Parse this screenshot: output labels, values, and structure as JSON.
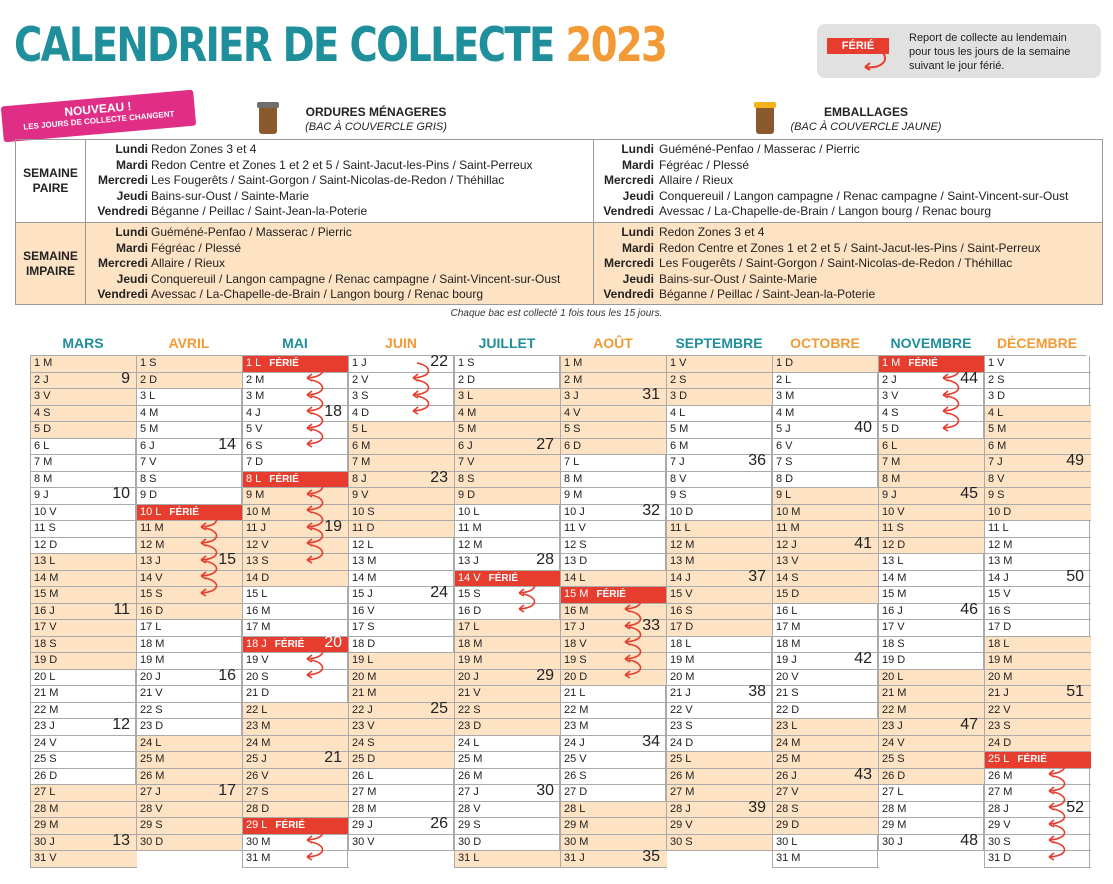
{
  "title": {
    "main": "CALENDRIER DE COLLECTE",
    "year": "2023"
  },
  "legend": {
    "badge": "FÉRIÉ",
    "text": [
      "Report de collecte au lendemain",
      "pour tous les jours de la semaine",
      "suivant le jour férié."
    ]
  },
  "banner": {
    "line1": "NOUVEAU !",
    "line2": "LES JOURS DE COLLECTE CHANGENT"
  },
  "bins": {
    "om": {
      "title": "ORDURES MÉNAGERES",
      "subtitle": "(BAC À COUVERCLE GRIS)",
      "lid_color": "#6e6e6e"
    },
    "emb": {
      "title": "EMBALLAGES",
      "subtitle": "(BAC À COUVERCLE JAUNE)",
      "lid_color": "#f2b21c"
    }
  },
  "schedule": {
    "paire": {
      "label": [
        "SEMAINE",
        "PAIRE"
      ],
      "days": [
        "Lundi",
        "Mardi",
        "Mercredi",
        "Jeudi",
        "Vendredi"
      ],
      "om": [
        "Redon Zones 3 et 4",
        "Redon Centre et Zones 1 et 2 et 5 / Saint-Jacut-les-Pins / Saint-Perreux",
        "Les Fougerêts / Saint-Gorgon / Saint-Nicolas-de-Redon / Théhillac",
        "Bains-sur-Oust / Sainte-Marie",
        "Béganne / Peillac / Saint-Jean-la-Poterie"
      ],
      "emb": [
        "Guéméné-Penfao / Masserac / Pierric",
        "Fégréac / Plessé",
        "Allaire / Rieux",
        "Conquereuil / Langon campagne / Renac campagne / Saint-Vincent-sur-Oust",
        "Avessac / La-Chapelle-de-Brain / Langon bourg / Renac bourg"
      ]
    },
    "impaire": {
      "label": [
        "SEMAINE",
        "IMPAIRE"
      ],
      "days": [
        "Lundi",
        "Mardi",
        "Mercredi",
        "Jeudi",
        "Vendredi"
      ],
      "om": [
        "Guéméné-Penfao / Masserac / Pierric",
        "Fégréac / Plessé",
        "Allaire / Rieux",
        "Conquereuil / Langon campagne / Renac campagne / Saint-Vincent-sur-Oust",
        "Avessac / La-Chapelle-de-Brain / Langon bourg / Renac bourg"
      ],
      "emb": [
        "Redon Zones 3 et 4",
        "Redon Centre et Zones 1 et 2 et 5 / Saint-Jacut-les-Pins / Saint-Perreux",
        "Les Fougerêts / Saint-Gorgon / Saint-Nicolas-de-Redon / Théhillac",
        "Bains-sur-Oust / Sainte-Marie",
        "Béganne / Peillac / Saint-Jean-la-Poterie"
      ]
    }
  },
  "note": "Chaque bac est collecté 1 fois tous les 15 jours.",
  "colors": {
    "teal": "#1f8f9b",
    "orange": "#f29a35",
    "shade": "#fde2c3",
    "holiday": "#e63d2f",
    "arrow": "#e63d2f"
  },
  "ferie_label": "FÉRIÉ",
  "months": [
    {
      "name": "MARS",
      "color": "#1f8f9b",
      "days": [
        "1 M",
        "2 J",
        "3 V",
        "4 S",
        "5 D",
        "6 L",
        "7 M",
        "8 M",
        "9 J",
        "10 V",
        "11 S",
        "12 D",
        "13 L",
        "14 M",
        "15 M",
        "16 J",
        "17 V",
        "18 S",
        "19 D",
        "20 L",
        "21 M",
        "22 M",
        "23 J",
        "24 V",
        "25 S",
        "26 D",
        "27 L",
        "28 M",
        "29 M",
        "30 J",
        "31 V"
      ],
      "shaded": [
        1,
        2,
        3,
        4,
        5,
        13,
        14,
        15,
        16,
        17,
        18,
        19,
        27,
        28,
        29,
        30,
        31
      ],
      "weeks": {
        "2": "9",
        "9": "10",
        "16": "11",
        "23": "12",
        "30": "13"
      },
      "holidays": [],
      "arrows": []
    },
    {
      "name": "AVRIL",
      "color": "#f29a35",
      "days": [
        "1 S",
        "2 D",
        "3 L",
        "4 M",
        "5 M",
        "6 J",
        "7 V",
        "8 S",
        "9 D",
        "10 L",
        "11 M",
        "12 M",
        "13 J",
        "14 V",
        "15 S",
        "16 D",
        "17 L",
        "18 M",
        "19 M",
        "20 J",
        "21 V",
        "22 S",
        "23 D",
        "24 L",
        "25 M",
        "26 M",
        "27 J",
        "28 V",
        "29 S",
        "30 D"
      ],
      "shaded": [
        1,
        2,
        10,
        11,
        12,
        13,
        14,
        15,
        16,
        24,
        25,
        26,
        27,
        28,
        29,
        30
      ],
      "weeks": {
        "6": "14",
        "13": "15",
        "20": "16",
        "27": "17"
      },
      "holidays": [
        10
      ],
      "arrows": [
        10,
        11,
        12,
        13,
        14
      ]
    },
    {
      "name": "MAI",
      "color": "#1f8f9b",
      "days": [
        "1 L",
        "2 M",
        "3 M",
        "4 J",
        "5 V",
        "6 S",
        "7 D",
        "8 L",
        "9 M",
        "10 M",
        "11 J",
        "12 V",
        "13 S",
        "14 D",
        "15 L",
        "16 M",
        "17 M",
        "18 J",
        "19 V",
        "20 S",
        "21 D",
        "22 L",
        "23 M",
        "24 M",
        "25 J",
        "26 V",
        "27 S",
        "28 D",
        "29 L",
        "30 M",
        "31 M"
      ],
      "shaded": [
        8,
        9,
        10,
        11,
        12,
        13,
        14,
        22,
        23,
        24,
        25,
        26,
        27,
        28
      ],
      "weeks": {
        "4": "18",
        "11": "19",
        "18": "20",
        "25": "21"
      },
      "holidays": [
        1,
        8,
        18,
        29
      ],
      "arrows": [
        1,
        2,
        3,
        4,
        5,
        8,
        9,
        10,
        11,
        12,
        18,
        19,
        29,
        30
      ]
    },
    {
      "name": "JUIN",
      "color": "#f29a35",
      "days": [
        "1 J",
        "2 V",
        "3 S",
        "4 D",
        "5 L",
        "6 M",
        "7 M",
        "8 J",
        "9 V",
        "10 S",
        "11 D",
        "12 L",
        "13 M",
        "14 M",
        "15 J",
        "16 V",
        "17 S",
        "18 D",
        "19 L",
        "20 M",
        "21 M",
        "22 J",
        "23 V",
        "24 S",
        "25 D",
        "26 L",
        "27 M",
        "28 M",
        "29 J",
        "30 V"
      ],
      "shaded": [
        5,
        6,
        7,
        8,
        9,
        10,
        11,
        19,
        20,
        21,
        22,
        23,
        24,
        25
      ],
      "weeks": {
        "1": "22",
        "8": "23",
        "15": "24",
        "22": "25",
        "29": "26"
      },
      "holidays": [],
      "arrows": [
        1,
        2,
        3
      ]
    },
    {
      "name": "JUILLET",
      "color": "#1f8f9b",
      "days": [
        "1 S",
        "2 D",
        "3 L",
        "4 M",
        "5 M",
        "6 J",
        "7 V",
        "8 S",
        "9 D",
        "10 L",
        "11 M",
        "12 M",
        "13 J",
        "14 V",
        "15 S",
        "16 D",
        "17 L",
        "18 M",
        "19 M",
        "20 J",
        "21 V",
        "22 S",
        "23 D",
        "24 L",
        "25 M",
        "26 M",
        "27 J",
        "28 V",
        "29 S",
        "30 D",
        "31 L"
      ],
      "shaded": [
        3,
        4,
        5,
        6,
        7,
        8,
        9,
        17,
        18,
        19,
        20,
        21,
        22,
        23,
        31
      ],
      "weeks": {
        "6": "27",
        "13": "28",
        "20": "29",
        "27": "30"
      },
      "holidays": [
        14
      ],
      "arrows": [
        14,
        15
      ]
    },
    {
      "name": "AOÛT",
      "color": "#f29a35",
      "days": [
        "1 M",
        "2 M",
        "3 J",
        "4 V",
        "5 S",
        "6 D",
        "7 L",
        "8 M",
        "9 M",
        "10 J",
        "11 V",
        "12 S",
        "13 D",
        "14 L",
        "15 M",
        "16 M",
        "17 J",
        "18 V",
        "19 S",
        "20 D",
        "21 L",
        "22 M",
        "23 M",
        "24 J",
        "25 V",
        "26 S",
        "27 D",
        "28 L",
        "29 M",
        "30 M",
        "31 J"
      ],
      "shaded": [
        1,
        2,
        3,
        4,
        5,
        6,
        14,
        15,
        16,
        17,
        18,
        19,
        20,
        28,
        29,
        30,
        31
      ],
      "weeks": {
        "3": "31",
        "10": "32",
        "17": "33",
        "24": "34",
        "31": "35"
      },
      "holidays": [
        15
      ],
      "arrows": [
        15,
        16,
        17,
        18,
        19
      ]
    },
    {
      "name": "SEPTEMBRE",
      "color": "#1f8f9b",
      "days": [
        "1 V",
        "2 S",
        "3 D",
        "4 L",
        "5 M",
        "6 M",
        "7 J",
        "8 V",
        "9 S",
        "10 D",
        "11 L",
        "12 M",
        "13 M",
        "14 J",
        "15 V",
        "16 S",
        "17 D",
        "18 L",
        "19 M",
        "20 M",
        "21 J",
        "22 V",
        "23 S",
        "24 D",
        "25 L",
        "26 M",
        "27 M",
        "28 J",
        "29 V",
        "30 S"
      ],
      "shaded": [
        1,
        2,
        3,
        11,
        12,
        13,
        14,
        15,
        16,
        17,
        25,
        26,
        27,
        28,
        29,
        30
      ],
      "weeks": {
        "7": "36",
        "14": "37",
        "21": "38",
        "28": "39"
      },
      "holidays": [],
      "arrows": []
    },
    {
      "name": "OCTOBRE",
      "color": "#f29a35",
      "days": [
        "1 D",
        "2 L",
        "3 M",
        "4 M",
        "5 J",
        "6 V",
        "7 S",
        "8 D",
        "9 L",
        "10 M",
        "11 M",
        "12 J",
        "13 V",
        "14 S",
        "15 D",
        "16 L",
        "17 M",
        "18 M",
        "19 J",
        "20 V",
        "21 S",
        "22 D",
        "23 L",
        "24 M",
        "25 M",
        "26 J",
        "27 V",
        "28 S",
        "29 D",
        "30 L",
        "31 M"
      ],
      "shaded": [
        1,
        9,
        10,
        11,
        12,
        13,
        14,
        15,
        23,
        24,
        25,
        26,
        27,
        28,
        29
      ],
      "weeks": {
        "5": "40",
        "12": "41",
        "19": "42",
        "26": "43"
      },
      "holidays": [],
      "arrows": []
    },
    {
      "name": "NOVEMBRE",
      "color": "#1f8f9b",
      "days": [
        "1 M",
        "2 J",
        "3 V",
        "4 S",
        "5 D",
        "6 L",
        "7 M",
        "8 M",
        "9 J",
        "10 V",
        "11 S",
        "12 D",
        "13 L",
        "14 M",
        "15 M",
        "16 J",
        "17 V",
        "18 S",
        "19 D",
        "20 L",
        "21 M",
        "22 M",
        "23 J",
        "24 V",
        "25 S",
        "26 D",
        "27 L",
        "28 M",
        "29 M",
        "30 J"
      ],
      "shaded": [
        6,
        7,
        8,
        9,
        10,
        11,
        12,
        20,
        21,
        22,
        23,
        24,
        25,
        26
      ],
      "weeks": {
        "2": "44",
        "9": "45",
        "16": "46",
        "23": "47",
        "30": "48"
      },
      "holidays": [
        1
      ],
      "arrows": [
        1,
        2,
        3,
        4
      ]
    },
    {
      "name": "DÉCEMBRE",
      "color": "#f29a35",
      "days": [
        "1 V",
        "2 S",
        "3 D",
        "4 L",
        "5 M",
        "6 M",
        "7 J",
        "8 V",
        "9 S",
        "10 D",
        "11 L",
        "12 M",
        "13 M",
        "14 J",
        "15 V",
        "16 S",
        "17 D",
        "18 L",
        "19 M",
        "20 M",
        "21 J",
        "22 V",
        "23 S",
        "24 D",
        "25 L",
        "26 M",
        "27 M",
        "28 J",
        "29 V",
        "30 S",
        "31 D"
      ],
      "shaded": [
        4,
        5,
        6,
        7,
        8,
        9,
        10,
        18,
        19,
        20,
        21,
        22,
        23,
        24
      ],
      "weeks": {
        "7": "49",
        "14": "50",
        "21": "51",
        "28": "52"
      },
      "holidays": [
        25
      ],
      "arrows": [
        25,
        26,
        27,
        28,
        29,
        30
      ]
    }
  ]
}
